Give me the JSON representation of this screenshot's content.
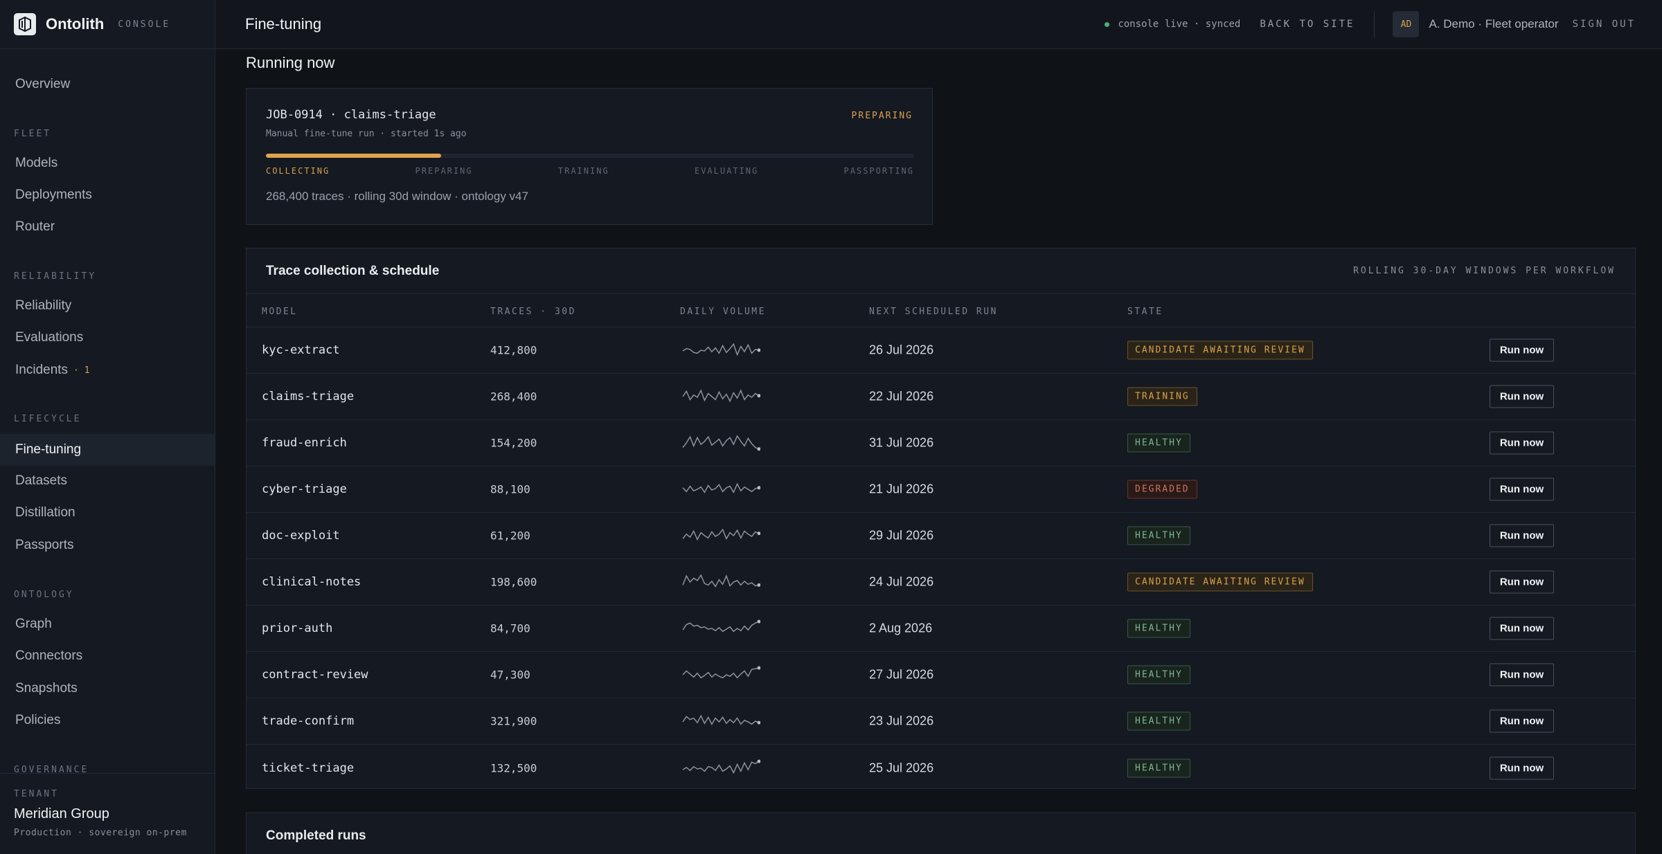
{
  "brand": {
    "name": "Ontolith",
    "sub": "CONSOLE"
  },
  "nav": {
    "overview": "Overview",
    "fleet_label": "FLEET",
    "models": "Models",
    "deployments": "Deployments",
    "router": "Router",
    "reliability_label": "RELIABILITY",
    "reliability": "Reliability",
    "evaluations": "Evaluations",
    "incidents": "Incidents",
    "incidents_badge": "· 1",
    "lifecycle_label": "LIFECYCLE",
    "finetuning": "Fine-tuning",
    "datasets": "Datasets",
    "distillation": "Distillation",
    "passports": "Passports",
    "ontology_label": "ONTOLOGY",
    "graph": "Graph",
    "connectors": "Connectors",
    "snapshots": "Snapshots",
    "policies": "Policies",
    "governance_label": "GOVERNANCE"
  },
  "tenant": {
    "label": "TENANT",
    "name": "Meridian Group",
    "sub": "Production · sovereign on-prem"
  },
  "topbar": {
    "title": "Fine-tuning",
    "status": "console live · synced",
    "back": "BACK TO SITE",
    "avatar": "AD",
    "user": "A. Demo · Fleet operator",
    "sign_out": "SIGN OUT"
  },
  "running": {
    "section_title": "Running now",
    "job_title": "JOB-0914 · claims-triage",
    "state": "PREPARING",
    "subtitle": "Manual fine-tune run · started 1s ago",
    "progress": 0.27,
    "stages": [
      "COLLECTING",
      "PREPARING",
      "TRAINING",
      "EVALUATING",
      "PASSPORTING"
    ],
    "current_stage": 0,
    "meta": "268,400 traces · rolling 30d window · ontology v47"
  },
  "traces": {
    "title": "Trace collection & schedule",
    "note": "ROLLING 30-DAY WINDOWS PER WORKFLOW",
    "columns": [
      "MODEL",
      "TRACES · 30D",
      "DAILY VOLUME",
      "NEXT SCHEDULED RUN",
      "STATE"
    ],
    "run_label": "Run now",
    "rows": [
      {
        "model": "kyc-extract",
        "traces": "412,800",
        "next": "26 Jul 2026",
        "state": "CANDIDATE AWAITING REVIEW",
        "tone": "amber",
        "volume": [
          0.45,
          0.6,
          0.55,
          0.35,
          0.3,
          0.5,
          0.45,
          0.7,
          0.4,
          0.65,
          0.3,
          0.8,
          0.35,
          0.6,
          0.9,
          0.2,
          0.75,
          0.4,
          0.85,
          0.3,
          0.55,
          0.5
        ]
      },
      {
        "model": "claims-triage",
        "traces": "268,400",
        "next": "22 Jul 2026",
        "state": "TRAINING",
        "tone": "amber",
        "volume": [
          0.5,
          0.85,
          0.3,
          0.6,
          0.45,
          0.9,
          0.25,
          0.7,
          0.5,
          0.3,
          0.8,
          0.35,
          0.65,
          0.2,
          0.75,
          0.4,
          0.9,
          0.3,
          0.6,
          0.45,
          0.7,
          0.55
        ]
      },
      {
        "model": "fraud-enrich",
        "traces": "154,200",
        "next": "31 Jul 2026",
        "state": "HEALTHY",
        "tone": "green",
        "volume": [
          0.2,
          0.5,
          0.9,
          0.3,
          0.85,
          0.4,
          0.6,
          0.9,
          0.35,
          0.55,
          0.75,
          0.3,
          0.65,
          0.85,
          0.4,
          0.95,
          0.6,
          0.3,
          0.8,
          0.45,
          0.2,
          0.1
        ]
      },
      {
        "model": "cyber-triage",
        "traces": "88,100",
        "next": "21 Jul 2026",
        "state": "DEGRADED",
        "tone": "red",
        "volume": [
          0.6,
          0.35,
          0.7,
          0.4,
          0.5,
          0.65,
          0.3,
          0.75,
          0.45,
          0.55,
          0.8,
          0.35,
          0.6,
          0.7,
          0.3,
          0.85,
          0.4,
          0.65,
          0.5,
          0.35,
          0.55,
          0.6
        ]
      },
      {
        "model": "doc-exploit",
        "traces": "61,200",
        "next": "29 Jul 2026",
        "state": "HEALTHY",
        "tone": "green",
        "volume": [
          0.3,
          0.6,
          0.4,
          0.8,
          0.25,
          0.7,
          0.5,
          0.35,
          0.75,
          0.45,
          0.6,
          0.9,
          0.3,
          0.7,
          0.5,
          0.85,
          0.35,
          0.8,
          0.6,
          0.45,
          0.75,
          0.65
        ]
      },
      {
        "model": "clinical-notes",
        "traces": "198,600",
        "next": "24 Jul 2026",
        "state": "CANDIDATE AWAITING REVIEW",
        "tone": "amber",
        "volume": [
          0.3,
          0.9,
          0.5,
          0.75,
          0.6,
          0.95,
          0.4,
          0.3,
          0.55,
          0.2,
          0.65,
          0.35,
          0.9,
          0.25,
          0.5,
          0.6,
          0.3,
          0.55,
          0.35,
          0.45,
          0.25,
          0.3
        ]
      },
      {
        "model": "prior-auth",
        "traces": "84,700",
        "next": "2 Aug 2026",
        "state": "HEALTHY",
        "tone": "green",
        "volume": [
          0.4,
          0.75,
          0.85,
          0.65,
          0.7,
          0.55,
          0.6,
          0.45,
          0.5,
          0.35,
          0.55,
          0.3,
          0.45,
          0.6,
          0.3,
          0.5,
          0.35,
          0.65,
          0.4,
          0.7,
          0.85,
          0.95
        ]
      },
      {
        "model": "contract-review",
        "traces": "47,300",
        "next": "27 Jul 2026",
        "state": "HEALTHY",
        "tone": "green",
        "volume": [
          0.5,
          0.75,
          0.55,
          0.35,
          0.6,
          0.3,
          0.45,
          0.65,
          0.35,
          0.55,
          0.4,
          0.3,
          0.5,
          0.4,
          0.6,
          0.3,
          0.55,
          0.75,
          0.4,
          0.85,
          0.9,
          0.95
        ]
      },
      {
        "model": "trade-confirm",
        "traces": "321,900",
        "next": "23 Jul 2026",
        "state": "HEALTHY",
        "tone": "green",
        "volume": [
          0.45,
          0.8,
          0.6,
          0.7,
          0.4,
          0.85,
          0.35,
          0.75,
          0.3,
          0.7,
          0.45,
          0.75,
          0.35,
          0.6,
          0.4,
          0.7,
          0.3,
          0.55,
          0.45,
          0.3,
          0.5,
          0.4
        ]
      },
      {
        "model": "ticket-triage",
        "traces": "132,500",
        "next": "25 Jul 2026",
        "state": "HEALTHY",
        "tone": "green",
        "volume": [
          0.4,
          0.55,
          0.35,
          0.6,
          0.45,
          0.5,
          0.3,
          0.6,
          0.55,
          0.35,
          0.7,
          0.3,
          0.45,
          0.65,
          0.2,
          0.75,
          0.3,
          0.85,
          0.4,
          0.9,
          0.8,
          0.95
        ]
      }
    ]
  },
  "completed": {
    "title": "Completed runs"
  }
}
